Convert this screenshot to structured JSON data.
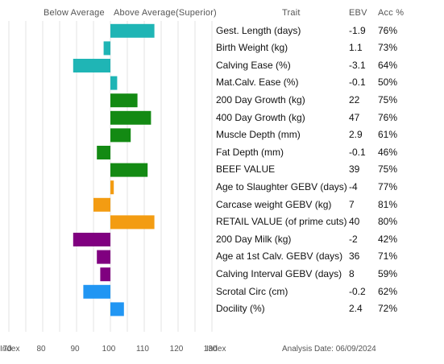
{
  "header": {
    "below_average": "Below Average",
    "above_average": "Above Average(Superior)",
    "trait": "Trait",
    "ebv": "EBV",
    "acc": "Acc %"
  },
  "footer": {
    "index_left": "Index",
    "index_right": "Index",
    "analysis_date": "Analysis Date: 06/09/2024"
  },
  "chart_data": {
    "type": "bar",
    "orientation": "horizontal",
    "baseline": 100,
    "xlim": [
      60,
      140
    ],
    "x_ticks": [
      "70",
      "80",
      "90",
      "100",
      "110",
      "120",
      "130"
    ],
    "grid": true,
    "categories": [
      "Gest. Length (days)",
      "Birth Weight (kg)",
      "Calving Ease (%)",
      "Mat.Calv. Ease (%)",
      "200 Day Growth (kg)",
      "400 Day Growth (kg)",
      "Muscle Depth (mm)",
      "Fat Depth (mm)",
      "BEEF VALUE",
      "Age to Slaughter GEBV (days)",
      "Carcase weight GEBV (kg)",
      "RETAIL VALUE (of prime cuts)",
      "200 Day Milk (kg)",
      "Age at 1st Calv. GEBV (days)",
      "Calving Interval GEBV (days)",
      "Scrotal Circ (cm)",
      "Docility (%)"
    ],
    "index_values": [
      113,
      98,
      89,
      102,
      108,
      112,
      106,
      96,
      111,
      101,
      95,
      113,
      89,
      96,
      97,
      92,
      104
    ],
    "ebv": [
      "-1.9",
      "1.1",
      "-3.1",
      "-0.1",
      "22",
      "47",
      "2.9",
      "-0.1",
      "39",
      "-4",
      "7",
      "40",
      "-2",
      "36",
      "8",
      "-0.2",
      "2.4"
    ],
    "acc": [
      "76%",
      "73%",
      "64%",
      "50%",
      "75%",
      "76%",
      "61%",
      "46%",
      "75%",
      "77%",
      "81%",
      "80%",
      "42%",
      "71%",
      "59%",
      "62%",
      "72%"
    ],
    "colors": [
      "#1fb5b5",
      "#1fb5b5",
      "#1fb5b5",
      "#1fb5b5",
      "#138a13",
      "#138a13",
      "#138a13",
      "#138a13",
      "#138a13",
      "#f39c12",
      "#f39c12",
      "#f39c12",
      "#800080",
      "#800080",
      "#800080",
      "#2196f3",
      "#2196f3"
    ]
  }
}
